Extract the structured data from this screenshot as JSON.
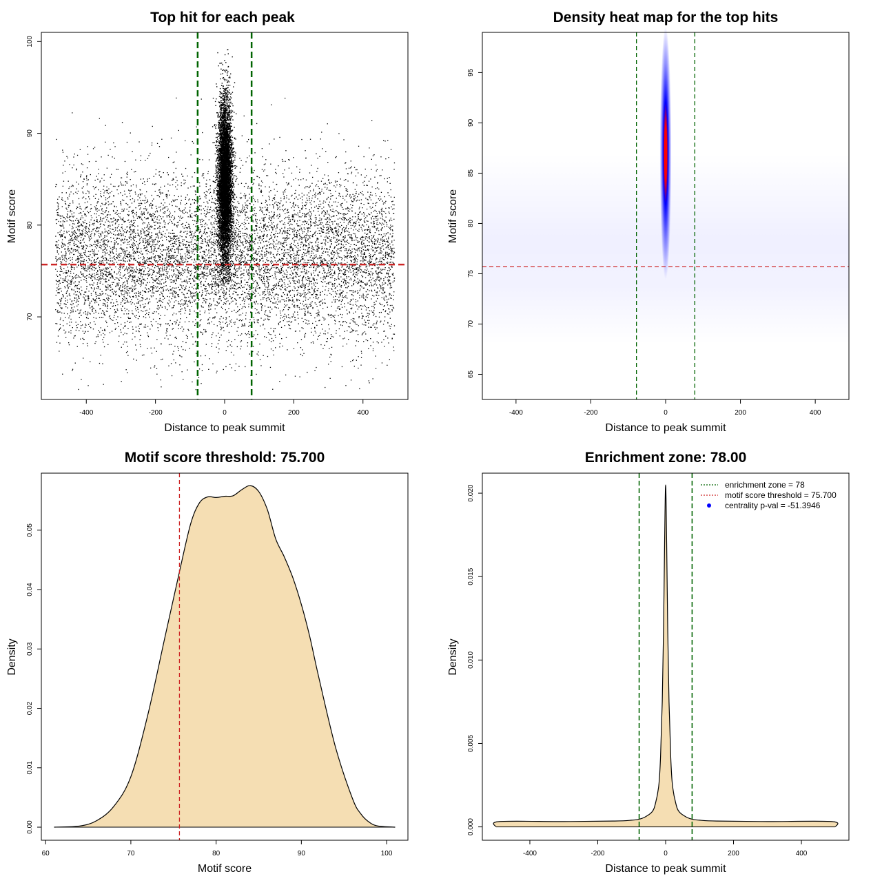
{
  "colors": {
    "background": "#ffffff",
    "points": "#000000",
    "enrichment_line": "#006400",
    "threshold_line": "#cd2626",
    "density_fill": "#f5deb3",
    "heat_low": "#ffffff",
    "heat_mid": "#0000ff",
    "heat_high": "#ff0000",
    "legend_dot": "#0000ff"
  },
  "chart_data": [
    {
      "type": "scatter",
      "title": "Top hit for each peak",
      "xlabel": "Distance to peak summit",
      "ylabel": "Motif score",
      "xlim": [
        -530,
        530
      ],
      "ylim": [
        61,
        101
      ],
      "xticks": [
        -400,
        -200,
        0,
        200,
        400
      ],
      "yticks": [
        70,
        80,
        90,
        100
      ],
      "x_range_of_points": [
        -490,
        490
      ],
      "background_score_mean": 76.5,
      "background_score_sd": 4.6,
      "central_peak_score_mean": 84.5,
      "central_peak_score_sd": 4.5,
      "central_peak_center": 0,
      "central_peak_halfwidth": 18,
      "enrichment_lines": [
        -78,
        78
      ],
      "threshold_line": 75.7,
      "grid": false
    },
    {
      "type": "heatmap",
      "title": "Density heat map for the top hits",
      "xlabel": "Distance to peak summit",
      "ylabel": "Motif score",
      "xlim": [
        -490,
        490
      ],
      "ylim": [
        62.5,
        99
      ],
      "xticks": [
        -400,
        -200,
        0,
        200,
        400
      ],
      "yticks": [
        65,
        70,
        75,
        80,
        85,
        90,
        95
      ],
      "hotspot_center": [
        0,
        87
      ],
      "hotspot_sd": [
        7,
        4.2
      ],
      "enrichment_lines": [
        -78,
        78
      ],
      "threshold_line": 75.7,
      "grid": false
    },
    {
      "type": "area",
      "title": "Motif score threshold: 75.700",
      "xlabel": "Motif score",
      "ylabel": "Density",
      "xlim": [
        59.5,
        102.5
      ],
      "ylim": [
        -0.0022,
        0.0596
      ],
      "xticks": [
        60,
        70,
        80,
        90,
        100
      ],
      "yticks": [
        0.0,
        0.01,
        0.02,
        0.03,
        0.04,
        0.05
      ],
      "ytick_labels": [
        "0.00",
        "0.01",
        "0.02",
        "0.03",
        "0.04",
        "0.05"
      ],
      "x": [
        61,
        64,
        66,
        68,
        70,
        72,
        74,
        75.7,
        77,
        78,
        79,
        80,
        81,
        82,
        83,
        84,
        85,
        86,
        87,
        88,
        89,
        90,
        91,
        92,
        94,
        96,
        97,
        98,
        99,
        101
      ],
      "y": [
        0.0,
        0.0002,
        0.0011,
        0.0035,
        0.0085,
        0.019,
        0.032,
        0.043,
        0.051,
        0.0545,
        0.0556,
        0.0555,
        0.0557,
        0.0558,
        0.0568,
        0.0575,
        0.0565,
        0.0535,
        0.0485,
        0.0455,
        0.042,
        0.0375,
        0.032,
        0.0255,
        0.0135,
        0.0048,
        0.0022,
        0.0008,
        0.0002,
        0.0
      ],
      "threshold_line": 75.7,
      "grid": false
    },
    {
      "type": "area",
      "title": "Enrichment zone: 78.00",
      "xlabel": "Distance to peak summit",
      "ylabel": "Density",
      "xlim": [
        -540,
        540
      ],
      "ylim": [
        -0.0008,
        0.0212
      ],
      "xticks": [
        -400,
        -200,
        0,
        200,
        400
      ],
      "yticks": [
        0.0,
        0.005,
        0.01,
        0.015,
        0.02
      ],
      "ytick_labels": [
        "0.000",
        "0.005",
        "0.010",
        "0.015",
        "0.020"
      ],
      "x": [
        -500,
        -490,
        -300,
        -150,
        -100,
        -80,
        -60,
        -40,
        -30,
        -20,
        -15,
        -10,
        -6,
        -3,
        0,
        3,
        6,
        10,
        15,
        20,
        30,
        40,
        60,
        80,
        100,
        150,
        300,
        490,
        500
      ],
      "y": [
        0.0,
        0.00032,
        0.00032,
        0.00035,
        0.0004,
        0.00045,
        0.0006,
        0.0009,
        0.0014,
        0.0025,
        0.0042,
        0.0075,
        0.012,
        0.017,
        0.0205,
        0.017,
        0.012,
        0.0075,
        0.0042,
        0.0025,
        0.0014,
        0.0009,
        0.0006,
        0.00045,
        0.0004,
        0.00035,
        0.00032,
        0.00032,
        0.0
      ],
      "enrichment_lines": [
        -78,
        78
      ],
      "grid": false,
      "legend": {
        "position": "top-right",
        "entries": [
          {
            "label": "enrichment zone = 78",
            "style": "dotted-green"
          },
          {
            "label": "motif score threshold = 75.700",
            "style": "dotted-red"
          },
          {
            "label": "centrality p-val = -51.3946",
            "style": "blue-dot"
          }
        ]
      }
    }
  ]
}
